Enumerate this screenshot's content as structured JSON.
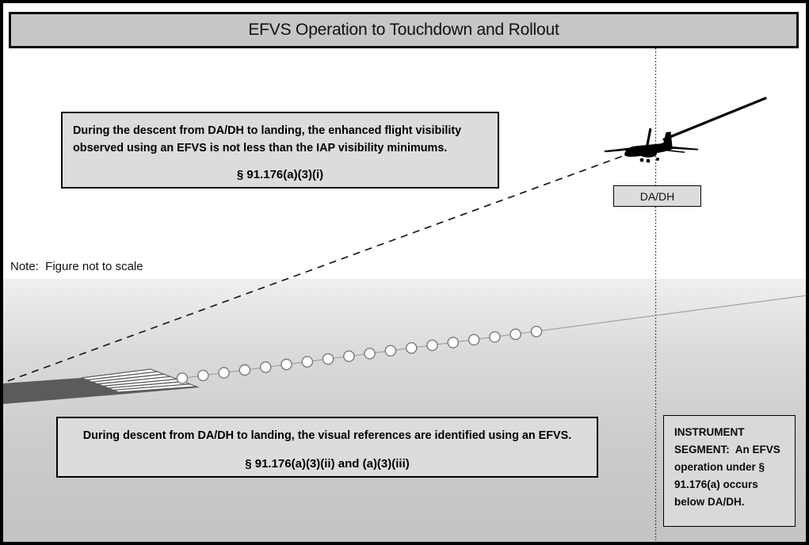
{
  "title_bar": {
    "label": "EFVS Operation to Touchdown and Rollout",
    "fill": "#c6c6c6"
  },
  "note": {
    "text": "Note:  Figure not to scale"
  },
  "callouts": {
    "enhanced_visibility": {
      "body": "During the descent from DA/DH to landing, the enhanced flight visibility observed using an EFVS is not less than the IAP visibility minimums.",
      "citation": "§ 91.176(a)(3)(i)"
    },
    "visual_references": {
      "body": "During descent from DA/DH to landing, the visual references are identified using an EFVS.",
      "citation": "§ 91.176(a)(3)(ii) and (a)(3)(iii)"
    },
    "instrument_segment": {
      "body": "INSTRUMENT SEGMENT:  An EFVS operation under § 91.176(a) occurs below DA/DH."
    }
  },
  "labels": {
    "da_dh": "DA/DH"
  },
  "scene": {
    "approach_lights": {
      "count": 18,
      "fill": "#ffffff",
      "stroke": "#7a7a7a"
    },
    "aircraft": {
      "icon": "twin-engine-airplane-silhouette",
      "color": "#000000"
    },
    "flight_path": {
      "style_below_da_dh": "dashed",
      "style_above_da_dh": "solid",
      "color": "#000000"
    },
    "colors": {
      "callout_fill": "#dcdcdc",
      "ground_top": "#efefef",
      "ground_bottom": "#c3c3c3",
      "runway_fill": "#5b5b5b",
      "light_line": "#9c9c9c"
    }
  }
}
